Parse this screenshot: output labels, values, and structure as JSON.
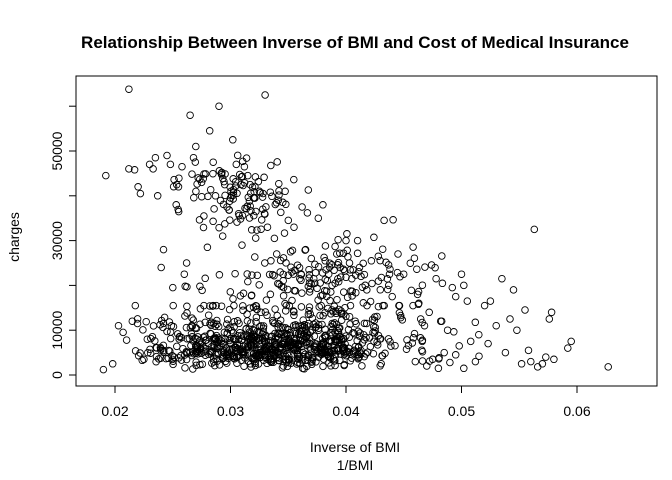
{
  "chart_data": {
    "type": "scatter",
    "title": "Relationship Between Inverse of BMI and Cost of Medical Insurance",
    "xlabel": "Inverse of BMI",
    "xlabel_sub": "1/BMI",
    "ylabel": "charges",
    "xlim": [
      0.0186,
      0.0628
    ],
    "ylim": [
      0,
      63800
    ],
    "x_ticks": [
      0.02,
      0.03,
      0.04,
      0.05,
      0.06
    ],
    "x_tick_labels": [
      "0.02",
      "0.03",
      "0.04",
      "0.05",
      "0.06"
    ],
    "y_ticks": [
      0,
      10000,
      30000,
      50000
    ],
    "y_tick_labels": [
      "0",
      "10000",
      "30000",
      "50000"
    ],
    "y_minor_ticks": [
      20000,
      40000
    ],
    "grid": false,
    "marker": "open-circle",
    "series": [
      {
        "points": [
          [
            0.019,
            1200
          ],
          [
            0.0192,
            44500
          ],
          [
            0.0198,
            2500
          ],
          [
            0.0203,
            11000
          ],
          [
            0.0207,
            9500
          ],
          [
            0.0212,
            63800
          ],
          [
            0.0212,
            46000
          ],
          [
            0.021,
            7800
          ],
          [
            0.0215,
            12000
          ],
          [
            0.0217,
            45800
          ],
          [
            0.022,
            42000
          ],
          [
            0.0222,
            40500
          ],
          [
            0.0225,
            3500
          ],
          [
            0.0228,
            8000
          ],
          [
            0.023,
            47000
          ],
          [
            0.0233,
            46000
          ],
          [
            0.0235,
            48500
          ],
          [
            0.0237,
            40000
          ],
          [
            0.024,
            24000
          ],
          [
            0.0242,
            28000
          ],
          [
            0.0245,
            49000
          ],
          [
            0.0248,
            47000
          ],
          [
            0.025,
            19500
          ],
          [
            0.0253,
            38000
          ],
          [
            0.0255,
            42000
          ],
          [
            0.0258,
            46500
          ],
          [
            0.026,
            22500
          ],
          [
            0.0262,
            25000
          ],
          [
            0.0265,
            58000
          ],
          [
            0.0268,
            48500
          ],
          [
            0.027,
            51000
          ],
          [
            0.0272,
            44000
          ],
          [
            0.0275,
            43000
          ],
          [
            0.0277,
            35500
          ],
          [
            0.028,
            28500
          ],
          [
            0.0282,
            54500
          ],
          [
            0.0285,
            47500
          ],
          [
            0.0287,
            40000
          ],
          [
            0.029,
            60000
          ],
          [
            0.0292,
            45000
          ],
          [
            0.0295,
            42500
          ],
          [
            0.0297,
            37500
          ],
          [
            0.03,
            39500
          ],
          [
            0.0302,
            52500
          ],
          [
            0.0305,
            47000
          ],
          [
            0.0307,
            36000
          ],
          [
            0.031,
            29000
          ],
          [
            0.0312,
            46500
          ],
          [
            0.0315,
            44500
          ],
          [
            0.0317,
            42500
          ],
          [
            0.032,
            39500
          ],
          [
            0.0322,
            36500
          ],
          [
            0.0325,
            41000
          ],
          [
            0.0328,
            37000
          ],
          [
            0.033,
            62500
          ],
          [
            0.0332,
            33000
          ],
          [
            0.0335,
            25500
          ],
          [
            0.0338,
            30500
          ],
          [
            0.034,
            27000
          ],
          [
            0.0343,
            23000
          ],
          [
            0.0346,
            19500
          ],
          [
            0.035,
            34500
          ],
          [
            0.0352,
            27500
          ],
          [
            0.0355,
            33000
          ],
          [
            0.0358,
            24500
          ],
          [
            0.036,
            21500
          ],
          [
            0.0362,
            37500
          ],
          [
            0.0365,
            28000
          ],
          [
            0.0368,
            23500
          ],
          [
            0.037,
            26000
          ],
          [
            0.0373,
            20500
          ],
          [
            0.0376,
            35000
          ],
          [
            0.038,
            38000
          ],
          [
            0.0382,
            25500
          ],
          [
            0.0385,
            22500
          ],
          [
            0.0388,
            20000
          ],
          [
            0.0392,
            27000
          ],
          [
            0.0395,
            24000
          ],
          [
            0.0398,
            18500
          ],
          [
            0.04,
            30000
          ],
          [
            0.0403,
            25000
          ],
          [
            0.0405,
            21500
          ],
          [
            0.041,
            30000
          ],
          [
            0.0413,
            22000
          ],
          [
            0.0418,
            19000
          ],
          [
            0.0422,
            25500
          ],
          [
            0.0428,
            26500
          ],
          [
            0.0433,
            34500
          ],
          [
            0.0437,
            20000
          ],
          [
            0.044,
            17500
          ],
          [
            0.0445,
            27000
          ],
          [
            0.045,
            22500
          ],
          [
            0.0458,
            15500
          ],
          [
            0.0462,
            18000
          ],
          [
            0.0468,
            11000
          ],
          [
            0.0472,
            14000
          ],
          [
            0.0478,
            21500
          ],
          [
            0.0482,
            12000
          ],
          [
            0.0488,
            10000
          ],
          [
            0.0492,
            19500
          ],
          [
            0.0495,
            17500
          ],
          [
            0.05,
            22500
          ],
          [
            0.0502,
            20000
          ],
          [
            0.0505,
            16500
          ],
          [
            0.0508,
            7500
          ],
          [
            0.0512,
            3000
          ],
          [
            0.0515,
            9000
          ],
          [
            0.052,
            15500
          ],
          [
            0.0523,
            7000
          ],
          [
            0.0525,
            16500
          ],
          [
            0.053,
            11000
          ],
          [
            0.0535,
            21500
          ],
          [
            0.0538,
            5000
          ],
          [
            0.0542,
            12500
          ],
          [
            0.0545,
            19000
          ],
          [
            0.0548,
            10000
          ],
          [
            0.0552,
            2500
          ],
          [
            0.0555,
            14500
          ],
          [
            0.0558,
            5500
          ],
          [
            0.056,
            3000
          ],
          [
            0.0563,
            32500
          ],
          [
            0.0566,
            1800
          ],
          [
            0.057,
            2500
          ],
          [
            0.0573,
            4000
          ],
          [
            0.0576,
            12500
          ],
          [
            0.0578,
            14000
          ],
          [
            0.058,
            3500
          ],
          [
            0.0592,
            6000
          ],
          [
            0.0595,
            7500
          ],
          [
            0.0627,
            1800
          ],
          [
            0.047,
            2000
          ],
          [
            0.0475,
            3500
          ],
          [
            0.048,
            1500
          ],
          [
            0.0485,
            5000
          ],
          [
            0.049,
            2800
          ],
          [
            0.0495,
            4500
          ],
          [
            0.0498,
            6500
          ],
          [
            0.0502,
            1500
          ],
          [
            0.0466,
            7500
          ],
          [
            0.046,
            3000
          ]
        ]
      }
    ],
    "cluster_seed_note": ""
  }
}
